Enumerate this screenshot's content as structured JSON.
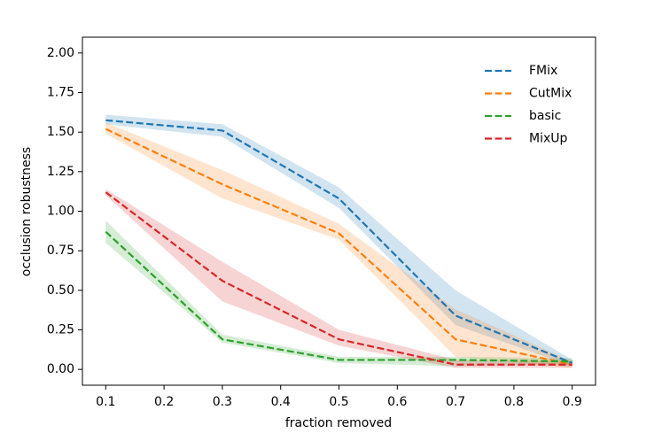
{
  "chart_data": {
    "type": "line",
    "xlabel": "fraction removed",
    "ylabel": "occlusion robustness",
    "x": [
      0.1,
      0.3,
      0.5,
      0.7,
      0.9
    ],
    "series": [
      {
        "name": "FMix",
        "color": "#1f77b4",
        "values": [
          1.575,
          1.51,
          1.08,
          0.34,
          0.04
        ],
        "lower": [
          1.55,
          1.47,
          1.02,
          0.28,
          0.02
        ],
        "upper": [
          1.61,
          1.55,
          1.15,
          0.5,
          0.06
        ]
      },
      {
        "name": "CutMix",
        "color": "#ff7f0e",
        "values": [
          1.52,
          1.17,
          0.86,
          0.19,
          0.03
        ],
        "lower": [
          1.49,
          1.08,
          0.82,
          0.08,
          0.01
        ],
        "upper": [
          1.56,
          1.26,
          0.92,
          0.38,
          0.05
        ]
      },
      {
        "name": "basic",
        "color": "#2ca02c",
        "values": [
          0.87,
          0.19,
          0.06,
          0.06,
          0.05
        ],
        "lower": [
          0.8,
          0.17,
          0.04,
          0.02,
          0.03
        ],
        "upper": [
          0.94,
          0.22,
          0.08,
          0.08,
          0.07
        ]
      },
      {
        "name": "MixUp",
        "color": "#d62728",
        "values": [
          1.12,
          0.56,
          0.19,
          0.03,
          0.03
        ],
        "lower": [
          1.1,
          0.43,
          0.15,
          0.01,
          0.01
        ],
        "upper": [
          1.14,
          0.68,
          0.25,
          0.06,
          0.05
        ]
      }
    ],
    "xlim": [
      0.06,
      0.94
    ],
    "xticks": [
      0.1,
      0.2,
      0.3,
      0.4,
      0.5,
      0.6,
      0.7,
      0.8,
      0.9
    ],
    "ylim": [
      -0.1,
      2.1
    ],
    "yticks": [
      {
        "value": 0,
        "label": "0.00"
      },
      {
        "value": 0.25,
        "label": "0.25"
      },
      {
        "value": 0.5,
        "label": "0.50"
      },
      {
        "value": 0.75,
        "label": "0.75"
      },
      {
        "value": 1,
        "label": "1.00"
      },
      {
        "value": 1.25,
        "label": "1.25"
      },
      {
        "value": 1.5,
        "label": "1.50"
      },
      {
        "value": 1.75,
        "label": "1.75"
      },
      {
        "value": 2,
        "label": "2.00"
      }
    ],
    "legend": "upper right",
    "band_opacity": 0.2,
    "dashed": true
  }
}
